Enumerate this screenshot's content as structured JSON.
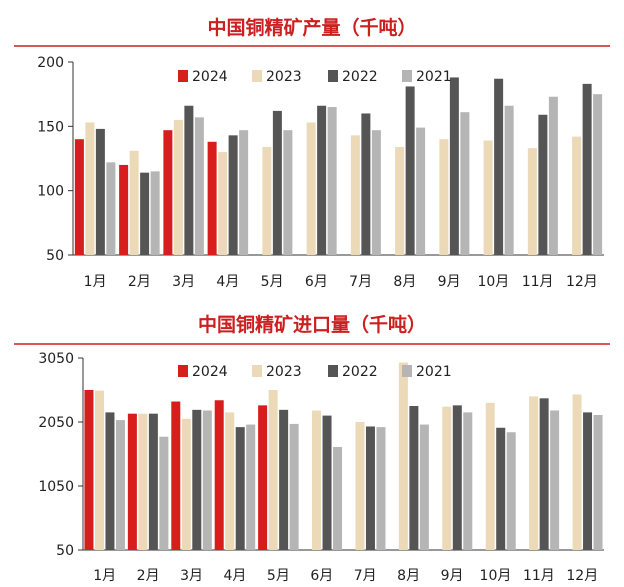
{
  "colors": {
    "title": "#cc1f1f",
    "rule": "#cc1f1f",
    "s2024": "#d81d1d",
    "s2023": "#ecd9b8",
    "s2022": "#555555",
    "s2021": "#b5b5b5"
  },
  "chart_data": [
    {
      "type": "bar",
      "title": "中国铜精矿产量（千吨）",
      "categories": [
        "1月",
        "2月",
        "3月",
        "4月",
        "5月",
        "6月",
        "7月",
        "8月",
        "9月",
        "10月",
        "11月",
        "12月"
      ],
      "ylim": [
        50,
        200
      ],
      "yticks": [
        "200",
        "150",
        "100",
        "50"
      ],
      "legend_position": "top-center",
      "series": [
        {
          "name": "2024",
          "values": [
            140,
            120,
            147,
            138,
            null,
            null,
            null,
            null,
            null,
            null,
            null,
            null
          ]
        },
        {
          "name": "2023",
          "values": [
            153,
            131,
            155,
            130,
            134,
            153,
            143,
            134,
            140,
            139,
            133,
            142
          ]
        },
        {
          "name": "2022",
          "values": [
            148,
            114,
            166,
            143,
            162,
            166,
            160,
            181,
            188,
            187,
            159,
            183
          ]
        },
        {
          "name": "2021",
          "values": [
            122,
            115,
            157,
            147,
            147,
            165,
            147,
            149,
            161,
            166,
            173,
            175
          ]
        }
      ]
    },
    {
      "type": "bar",
      "title": "中国铜精矿进口量（千吨）",
      "categories": [
        "1月",
        "2月",
        "3月",
        "4月",
        "5月",
        "6月",
        "7月",
        "8月",
        "9月",
        "10月",
        "11月",
        "12月"
      ],
      "ylim": [
        50,
        3050
      ],
      "yticks": [
        "3050",
        "2050",
        "1050",
        "50"
      ],
      "legend_position": "top-center",
      "series": [
        {
          "name": "2024",
          "values": [
            2550,
            2180,
            2370,
            2390,
            2310,
            null,
            null,
            null,
            null,
            null,
            null,
            null
          ]
        },
        {
          "name": "2023",
          "values": [
            2540,
            2180,
            2100,
            2200,
            2550,
            2230,
            2050,
            2980,
            2290,
            2350,
            2450,
            2480
          ]
        },
        {
          "name": "2022",
          "values": [
            2200,
            2180,
            2240,
            1970,
            2240,
            2150,
            1980,
            2300,
            2310,
            1960,
            2420,
            2200
          ]
        },
        {
          "name": "2021",
          "values": [
            2080,
            1820,
            2230,
            2010,
            2020,
            1660,
            1970,
            2010,
            2200,
            1890,
            2230,
            2160
          ]
        }
      ]
    }
  ]
}
